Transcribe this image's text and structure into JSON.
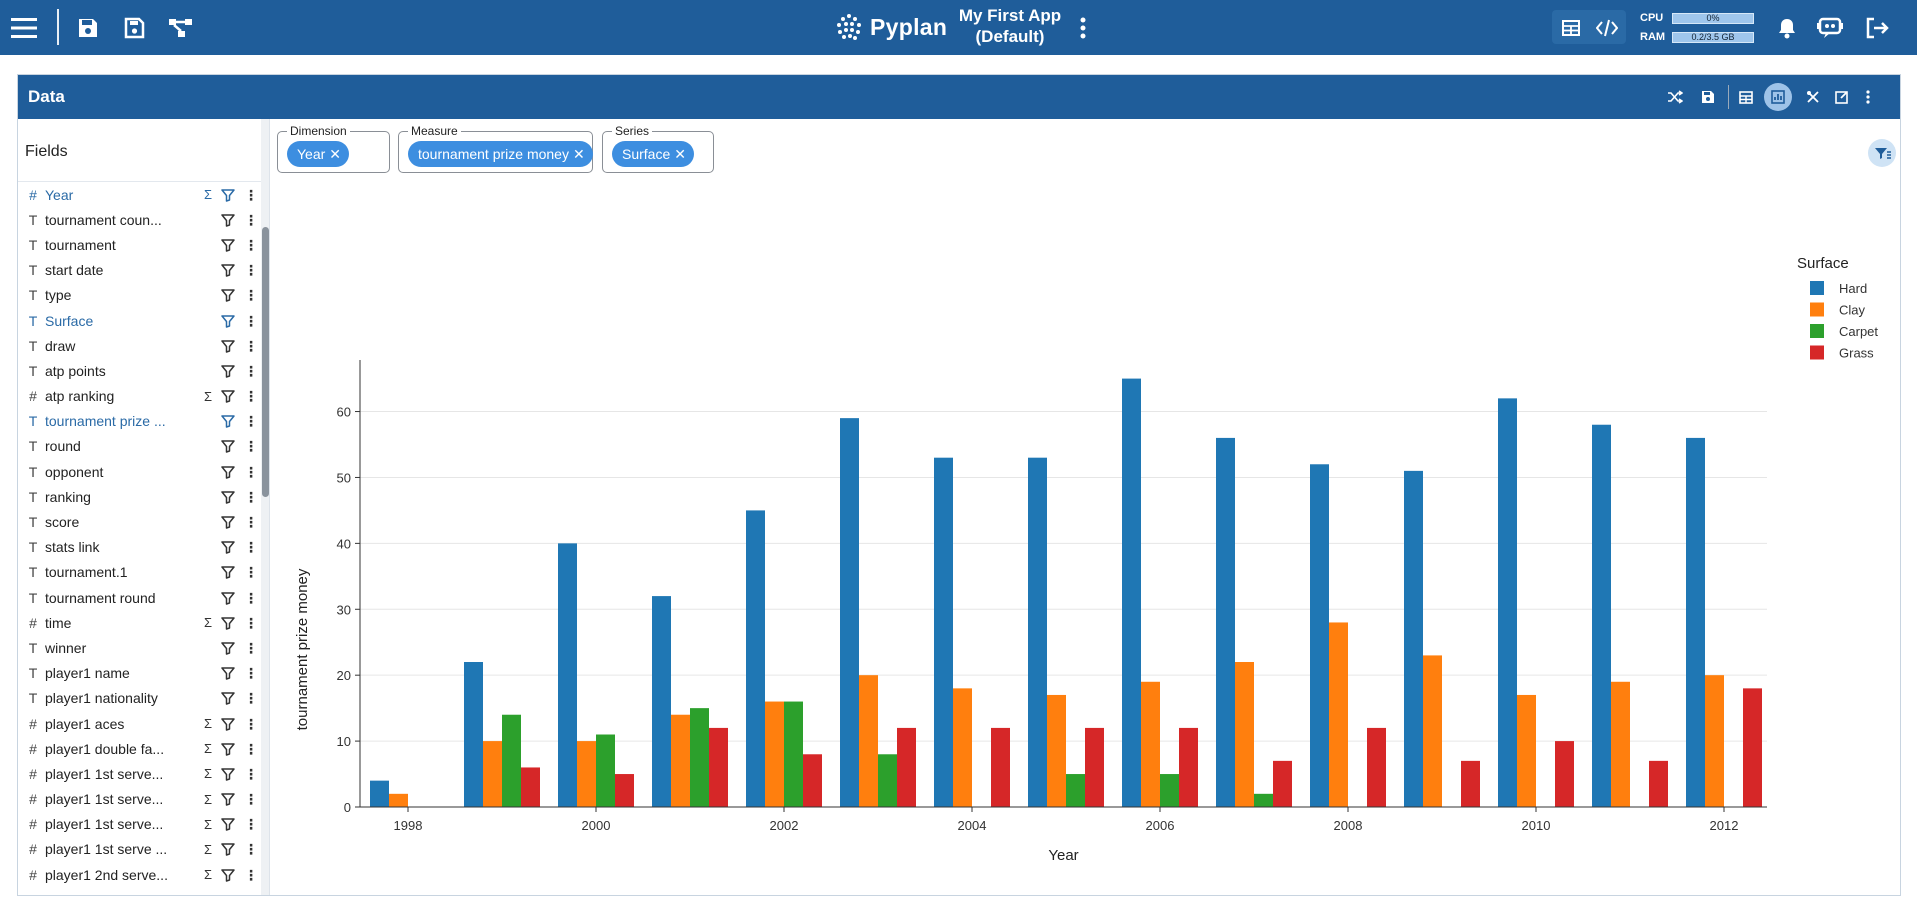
{
  "topbar": {
    "brand": "Pyplan",
    "app_title_line1": "My First App",
    "app_title_line2": "(Default)",
    "cpu_label": "CPU",
    "cpu_value": "0%",
    "ram_label": "RAM",
    "ram_value": "0.2/3.5 GB",
    "icons": [
      "menu-icon",
      "save-icon",
      "save-as-icon",
      "diagram-icon",
      "more-vertical-icon",
      "table-icon",
      "code-icon",
      "bell-icon",
      "assistant-icon",
      "logout-icon"
    ]
  },
  "panel": {
    "title": "Data",
    "icons": [
      "shuffle-icon",
      "save-icon",
      "table-icon",
      "chart-view-icon",
      "tools-icon",
      "edit-icon",
      "more-vertical-icon"
    ]
  },
  "fields": {
    "title": "Fields",
    "items": [
      {
        "name": "Year",
        "type": "#",
        "sum": true,
        "active": true
      },
      {
        "name": "tournament coun...",
        "type": "T",
        "sum": false,
        "active": false
      },
      {
        "name": "tournament",
        "type": "T",
        "sum": false,
        "active": false
      },
      {
        "name": "start date",
        "type": "T",
        "sum": false,
        "active": false
      },
      {
        "name": "type",
        "type": "T",
        "sum": false,
        "active": false
      },
      {
        "name": "Surface",
        "type": "T",
        "sum": false,
        "active": true
      },
      {
        "name": "draw",
        "type": "T",
        "sum": false,
        "active": false
      },
      {
        "name": "atp points",
        "type": "T",
        "sum": false,
        "active": false
      },
      {
        "name": "atp ranking",
        "type": "#",
        "sum": true,
        "active": false
      },
      {
        "name": "tournament prize ...",
        "type": "T",
        "sum": false,
        "active": true
      },
      {
        "name": "round",
        "type": "T",
        "sum": false,
        "active": false
      },
      {
        "name": "opponent",
        "type": "T",
        "sum": false,
        "active": false
      },
      {
        "name": "ranking",
        "type": "T",
        "sum": false,
        "active": false
      },
      {
        "name": "score",
        "type": "T",
        "sum": false,
        "active": false
      },
      {
        "name": "stats link",
        "type": "T",
        "sum": false,
        "active": false
      },
      {
        "name": "tournament.1",
        "type": "T",
        "sum": false,
        "active": false
      },
      {
        "name": "tournament round",
        "type": "T",
        "sum": false,
        "active": false
      },
      {
        "name": "time",
        "type": "#",
        "sum": true,
        "active": false
      },
      {
        "name": "winner",
        "type": "T",
        "sum": false,
        "active": false
      },
      {
        "name": "player1 name",
        "type": "T",
        "sum": false,
        "active": false
      },
      {
        "name": "player1 nationality",
        "type": "T",
        "sum": false,
        "active": false
      },
      {
        "name": "player1 aces",
        "type": "#",
        "sum": true,
        "active": false
      },
      {
        "name": "player1 double fa...",
        "type": "#",
        "sum": true,
        "active": false
      },
      {
        "name": "player1 1st serve...",
        "type": "#",
        "sum": true,
        "active": false
      },
      {
        "name": "player1 1st serve...",
        "type": "#",
        "sum": true,
        "active": false
      },
      {
        "name": "player1 1st serve...",
        "type": "#",
        "sum": true,
        "active": false
      },
      {
        "name": "player1 1st serve ...",
        "type": "#",
        "sum": true,
        "active": false
      },
      {
        "name": "player1 2nd serve...",
        "type": "#",
        "sum": true,
        "active": false
      }
    ]
  },
  "chips": {
    "dimension_label": "Dimension",
    "dimension_value": "Year",
    "measure_label": "Measure",
    "measure_value": "tournament prize money",
    "series_label": "Series",
    "series_value": "Surface"
  },
  "chart_data": {
    "type": "bar",
    "categories": [
      "1998",
      "1999",
      "2000",
      "2001",
      "2002",
      "2003",
      "2004",
      "2005",
      "2006",
      "2007",
      "2008",
      "2009",
      "2010",
      "2011",
      "2012"
    ],
    "x_tick_labels": [
      "1998",
      "2000",
      "2002",
      "2004",
      "2006",
      "2008",
      "2010",
      "2012"
    ],
    "xlabel": "Year",
    "ylabel": "tournament prize money",
    "ylim": [
      0,
      66
    ],
    "y_ticks": [
      0,
      10,
      20,
      30,
      40,
      50,
      60
    ],
    "grid": true,
    "legend_title": "Surface",
    "legend_position": "top-right",
    "series": [
      {
        "name": "Hard",
        "color": "#1f77b4",
        "values": [
          4,
          22,
          40,
          32,
          45,
          59,
          53,
          53,
          65,
          56,
          52,
          51,
          62,
          58,
          56
        ]
      },
      {
        "name": "Clay",
        "color": "#ff7f0e",
        "values": [
          2,
          10,
          10,
          14,
          16,
          20,
          18,
          17,
          19,
          22,
          28,
          23,
          17,
          19,
          20
        ]
      },
      {
        "name": "Carpet",
        "color": "#2ca02c",
        "values": [
          0,
          14,
          11,
          15,
          16,
          8,
          0,
          5,
          5,
          2,
          0,
          0,
          0,
          0,
          0
        ]
      },
      {
        "name": "Grass",
        "color": "#d62728",
        "values": [
          0,
          6,
          5,
          12,
          8,
          12,
          12,
          12,
          12,
          7,
          12,
          7,
          10,
          7,
          18
        ]
      }
    ]
  }
}
